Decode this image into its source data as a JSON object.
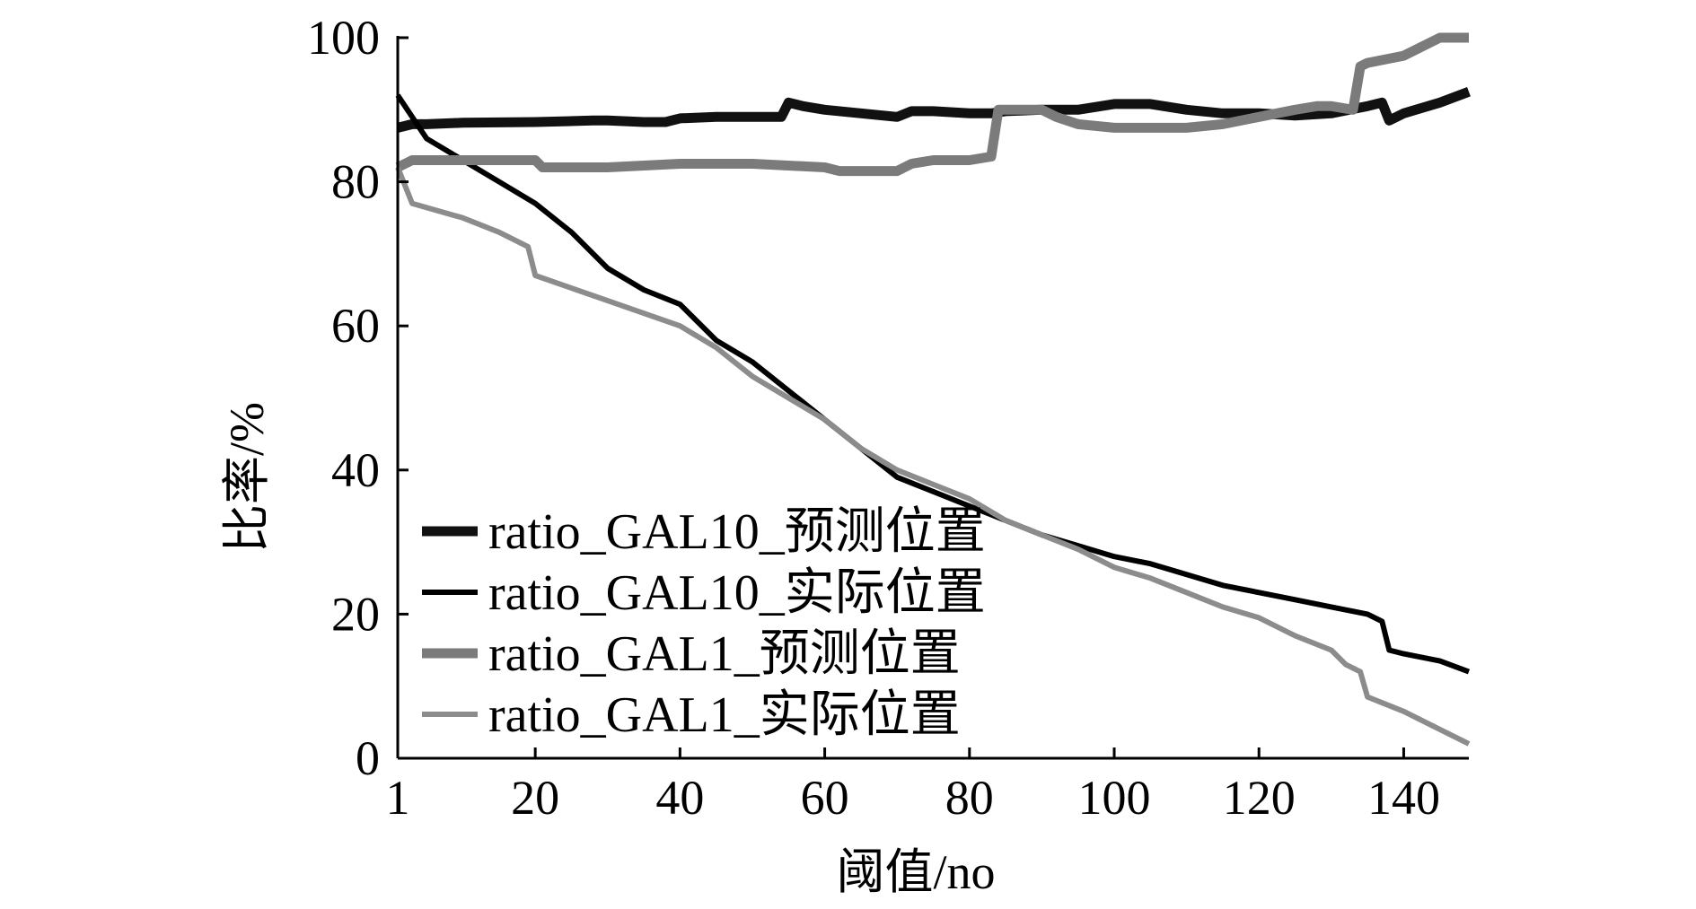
{
  "chart_data": {
    "type": "line",
    "title": "",
    "xlabel": "阈值/no",
    "ylabel": "比率/%",
    "xlim": [
      1,
      149
    ],
    "ylim": [
      0,
      100
    ],
    "xticks": [
      1,
      20,
      40,
      60,
      80,
      100,
      120,
      140
    ],
    "yticks": [
      0,
      20,
      40,
      60,
      80,
      100
    ],
    "grid": false,
    "legend_position": "lower-left",
    "series": [
      {
        "name": "ratio_GAL10_预测位置",
        "color": "#111111",
        "line_width": "thick",
        "x": [
          1,
          3,
          5,
          10,
          20,
          28,
          30,
          35,
          38,
          40,
          45,
          50,
          54,
          55,
          57,
          60,
          65,
          70,
          72,
          75,
          80,
          83,
          85,
          90,
          95,
          100,
          105,
          110,
          115,
          120,
          125,
          130,
          135,
          137,
          138,
          140,
          145,
          149
        ],
        "y": [
          87.5,
          88,
          88,
          88.2,
          88.3,
          88.5,
          88.5,
          88.3,
          88.3,
          88.8,
          89,
          89,
          89,
          91,
          90.5,
          90,
          89.5,
          89,
          89.8,
          89.8,
          89.5,
          89.5,
          89.8,
          90,
          90,
          90.8,
          90.8,
          90,
          89.5,
          89.5,
          89.2,
          89.5,
          90.5,
          91,
          88.5,
          89.5,
          91,
          92.5
        ]
      },
      {
        "name": "ratio_GAL10_实际位置",
        "color": "#000000",
        "line_width": "thin",
        "x": [
          1,
          5,
          10,
          15,
          20,
          25,
          30,
          35,
          40,
          45,
          50,
          55,
          60,
          65,
          70,
          75,
          80,
          85,
          90,
          95,
          100,
          105,
          110,
          115,
          120,
          125,
          130,
          135,
          137,
          138,
          140,
          145,
          149
        ],
        "y": [
          92,
          86,
          83,
          80,
          77,
          73,
          68,
          65,
          63,
          58,
          55,
          51,
          47,
          43,
          39,
          37,
          35,
          33,
          31,
          29.5,
          28,
          27,
          25.5,
          24,
          23,
          22,
          21,
          20,
          19,
          15,
          14.5,
          13.5,
          12
        ]
      },
      {
        "name": "ratio_GAL1_预测位置",
        "color": "#7b7b7b",
        "line_width": "thick",
        "x": [
          1,
          3,
          10,
          20,
          21,
          30,
          40,
          50,
          60,
          62,
          70,
          72,
          75,
          80,
          83,
          84,
          85,
          90,
          92,
          95,
          100,
          105,
          110,
          115,
          120,
          125,
          128,
          130,
          133,
          134,
          135,
          140,
          145,
          149
        ],
        "y": [
          82,
          83,
          83,
          83,
          82,
          82,
          82.5,
          82.5,
          82,
          81.5,
          81.5,
          82.5,
          83,
          83,
          83.5,
          90,
          90,
          90,
          89,
          88,
          87.5,
          87.5,
          87.5,
          88,
          89,
          90,
          90.5,
          90.5,
          90,
          96,
          96.5,
          97.5,
          100,
          100
        ]
      },
      {
        "name": "ratio_GAL1_实际位置",
        "color": "#8c8c8c",
        "line_width": "thin",
        "x": [
          1,
          3,
          10,
          15,
          19,
          20,
          30,
          40,
          45,
          50,
          55,
          60,
          65,
          70,
          75,
          80,
          85,
          90,
          95,
          100,
          105,
          110,
          115,
          120,
          125,
          130,
          132,
          134,
          135,
          140,
          145,
          149
        ],
        "y": [
          82,
          77,
          75,
          73,
          71,
          67,
          63.5,
          60,
          57,
          53,
          50,
          47,
          43,
          40,
          38,
          36,
          33,
          31,
          29,
          26.5,
          25,
          23,
          21,
          19.5,
          17,
          15,
          13,
          12,
          8.5,
          6.5,
          4,
          2
        ]
      }
    ]
  }
}
